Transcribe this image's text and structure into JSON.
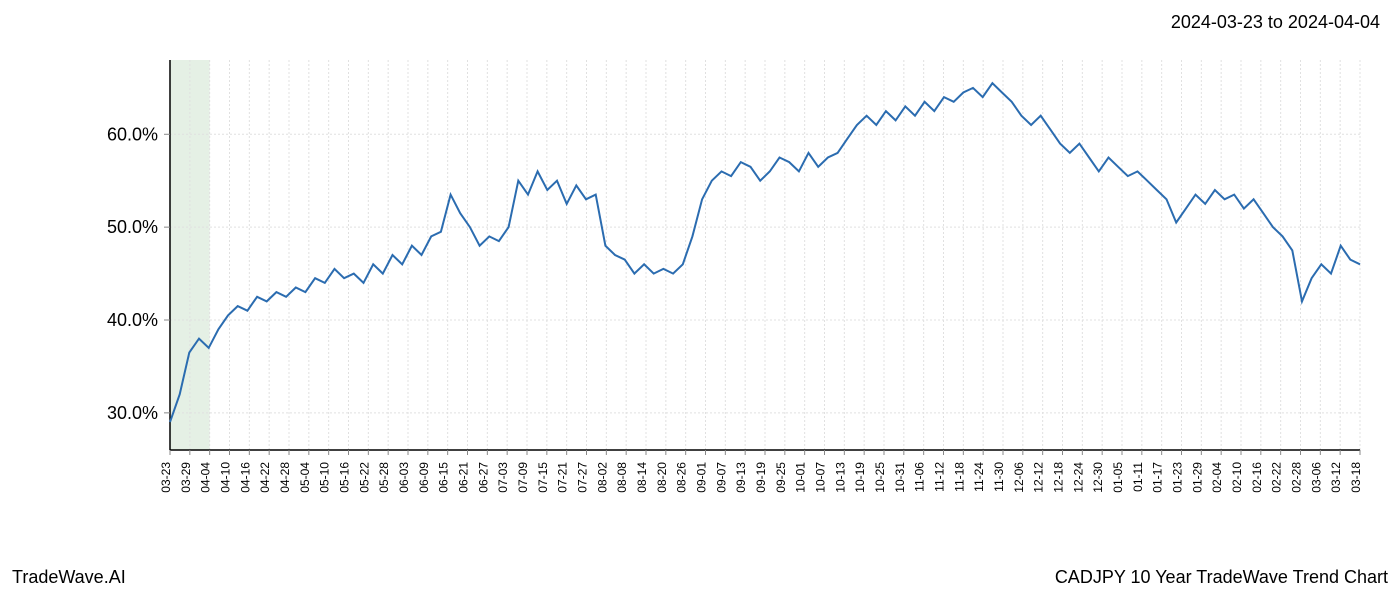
{
  "header": {
    "date_range": "2024-03-23 to 2024-04-04"
  },
  "footer": {
    "brand": "TradeWave.AI",
    "chart_title": "CADJPY 10 Year TradeWave Trend Chart"
  },
  "chart": {
    "type": "line",
    "background_color": "#ffffff",
    "grid_color": "#e0e0e0",
    "axis_color": "#000000",
    "line_color": "#2b6cb0",
    "line_width": 2,
    "highlight_band_color": "#d4e6d4",
    "highlight_band": {
      "start_index": 0,
      "end_index": 2
    },
    "y_axis": {
      "min": 26,
      "max": 68,
      "ticks": [
        30.0,
        40.0,
        50.0,
        60.0
      ],
      "tick_labels": [
        "30.0%",
        "40.0%",
        "50.0%",
        "60.0%"
      ],
      "label_fontsize": 18
    },
    "x_axis": {
      "label_fontsize": 12,
      "labels": [
        "03-23",
        "03-29",
        "04-04",
        "04-10",
        "04-16",
        "04-22",
        "04-28",
        "05-04",
        "05-10",
        "05-16",
        "05-22",
        "05-28",
        "06-03",
        "06-09",
        "06-15",
        "06-21",
        "06-27",
        "07-03",
        "07-09",
        "07-15",
        "07-21",
        "07-27",
        "08-02",
        "08-08",
        "08-14",
        "08-20",
        "08-26",
        "09-01",
        "09-07",
        "09-13",
        "09-19",
        "09-25",
        "10-01",
        "10-07",
        "10-13",
        "10-19",
        "10-25",
        "10-31",
        "11-06",
        "11-12",
        "11-18",
        "11-24",
        "11-30",
        "12-06",
        "12-12",
        "12-18",
        "12-24",
        "12-30",
        "01-05",
        "01-11",
        "01-17",
        "01-23",
        "01-29",
        "02-04",
        "02-10",
        "02-16",
        "02-22",
        "02-28",
        "03-06",
        "03-12",
        "03-18"
      ]
    },
    "data": [
      29.0,
      32.0,
      36.5,
      38.0,
      37.0,
      39.0,
      40.5,
      41.5,
      41.0,
      42.5,
      42.0,
      43.0,
      42.5,
      43.5,
      43.0,
      44.5,
      44.0,
      45.5,
      44.5,
      45.0,
      44.0,
      46.0,
      45.0,
      47.0,
      46.0,
      48.0,
      47.0,
      49.0,
      49.5,
      53.5,
      51.5,
      50.0,
      48.0,
      49.0,
      48.5,
      50.0,
      55.0,
      53.5,
      56.0,
      54.0,
      55.0,
      52.5,
      54.5,
      53.0,
      53.5,
      48.0,
      47.0,
      46.5,
      45.0,
      46.0,
      45.0,
      45.5,
      45.0,
      46.0,
      49.0,
      53.0,
      55.0,
      56.0,
      55.5,
      57.0,
      56.5,
      55.0,
      56.0,
      57.5,
      57.0,
      56.0,
      58.0,
      56.5,
      57.5,
      58.0,
      59.5,
      61.0,
      62.0,
      61.0,
      62.5,
      61.5,
      63.0,
      62.0,
      63.5,
      62.5,
      64.0,
      63.5,
      64.5,
      65.0,
      64.0,
      65.5,
      64.5,
      63.5,
      62.0,
      61.0,
      62.0,
      60.5,
      59.0,
      58.0,
      59.0,
      57.5,
      56.0,
      57.5,
      56.5,
      55.5,
      56.0,
      55.0,
      54.0,
      53.0,
      50.5,
      52.0,
      53.5,
      52.5,
      54.0,
      53.0,
      53.5,
      52.0,
      53.0,
      51.5,
      50.0,
      49.0,
      47.5,
      42.0,
      44.5,
      46.0,
      45.0,
      48.0,
      46.5,
      46.0
    ]
  }
}
